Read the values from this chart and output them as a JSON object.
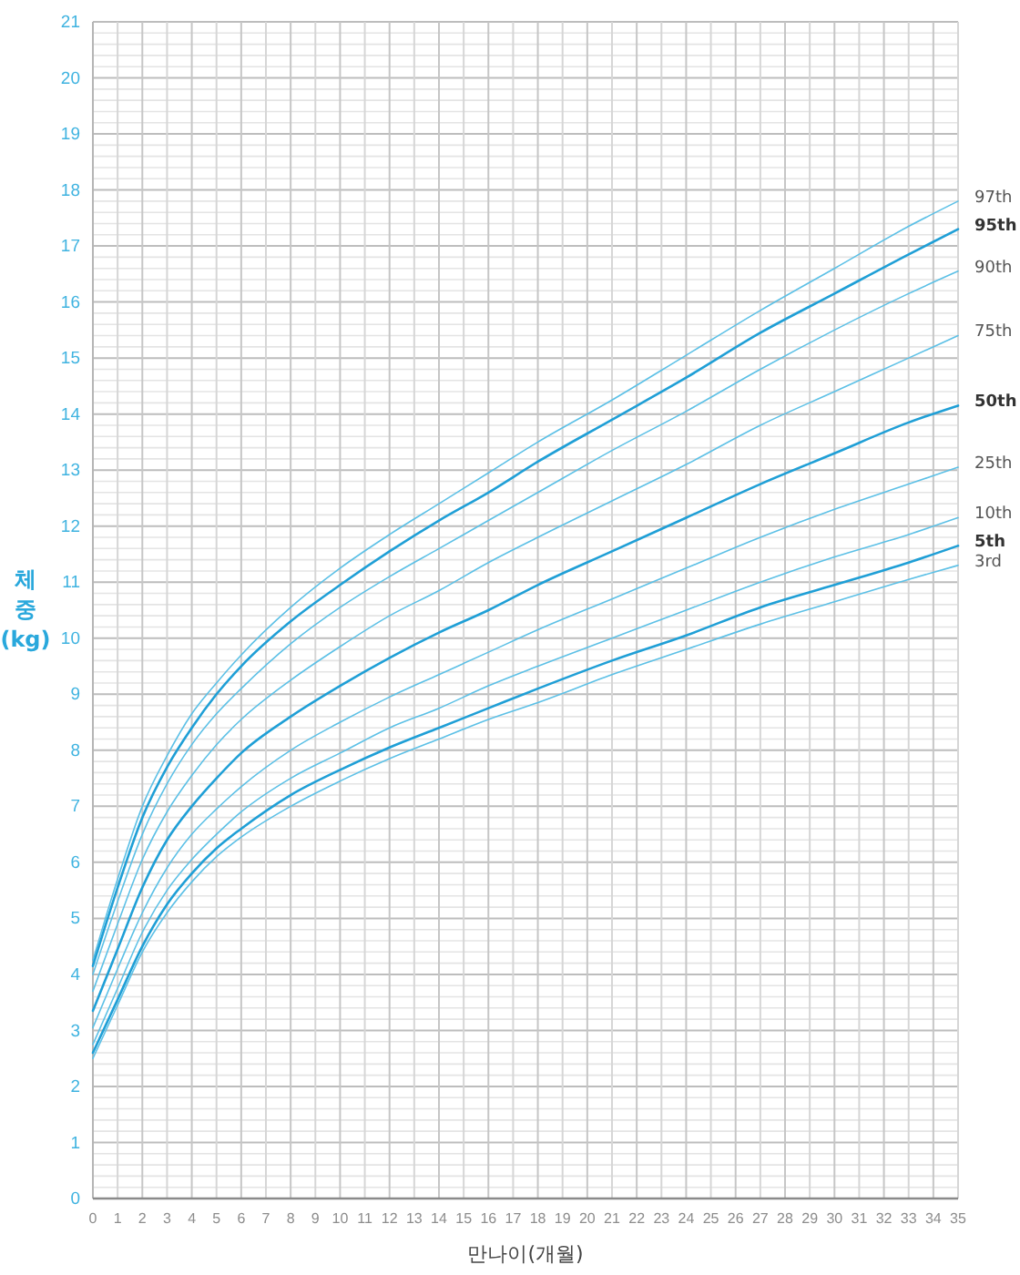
{
  "chart_data": {
    "type": "line",
    "xlabel": "만나이(개월)",
    "ylabel": "체중(kg)",
    "x": [
      0,
      1,
      2,
      3,
      4,
      5,
      6,
      8,
      10,
      12,
      14,
      16,
      18,
      21,
      24,
      27,
      30,
      33,
      35
    ],
    "xlim": [
      0,
      35
    ],
    "xticks": [
      0,
      1,
      2,
      3,
      4,
      5,
      6,
      7,
      8,
      9,
      10,
      11,
      12,
      13,
      14,
      15,
      16,
      17,
      18,
      19,
      20,
      21,
      22,
      23,
      24,
      25,
      26,
      27,
      28,
      29,
      30,
      31,
      32,
      33,
      34,
      35
    ],
    "ylim": [
      0,
      21
    ],
    "yticks": [
      0,
      {
        "value": 0.2,
        "label": null
      },
      {
        "value": 0.4,
        "label": null
      },
      {
        "value": 0.6,
        "label": null
      },
      {
        "value": 0.8,
        "label": null
      },
      1,
      {
        "value": 1.2,
        "label": null
      },
      {
        "value": 1.4,
        "label": null
      },
      {
        "value": 1.6,
        "label": null
      },
      {
        "value": 1.8,
        "label": null
      },
      2,
      {
        "value": 2.2,
        "label": null
      },
      {
        "value": 2.4,
        "label": null
      },
      {
        "value": 2.6,
        "label": null
      },
      {
        "value": 2.8,
        "label": null
      },
      3,
      {
        "value": 3.2,
        "label": null
      },
      {
        "value": 3.4,
        "label": null
      },
      {
        "value": 3.6,
        "label": null
      },
      {
        "value": 3.8,
        "label": null
      },
      4,
      {
        "value": 4.2,
        "label": null
      },
      {
        "value": 4.4,
        "label": null
      },
      {
        "value": 4.6,
        "label": null
      },
      {
        "value": 4.8,
        "label": null
      },
      5,
      {
        "value": 5.2,
        "label": null
      },
      {
        "value": 5.4,
        "label": null
      },
      {
        "value": 5.6,
        "label": null
      },
      {
        "value": 5.8,
        "label": null
      },
      6,
      {
        "value": 6.2,
        "label": null
      },
      {
        "value": 6.4,
        "label": null
      },
      {
        "value": 6.6,
        "label": null
      },
      {
        "value": 6.8,
        "label": null
      },
      7,
      {
        "value": 7.2,
        "label": null
      },
      {
        "value": 7.4,
        "label": null
      },
      {
        "value": 7.6,
        "label": null
      },
      {
        "value": 7.8,
        "label": null
      },
      8,
      {
        "value": 8.2,
        "label": null
      },
      {
        "value": 8.4,
        "label": null
      },
      {
        "value": 8.6,
        "label": null
      },
      {
        "value": 8.8,
        "label": null
      },
      9,
      {
        "value": 9.2,
        "label": null
      },
      {
        "value": 9.4,
        "label": null
      },
      {
        "value": 9.6,
        "label": null
      },
      {
        "value": 9.8,
        "label": null
      },
      10,
      {
        "value": 10.2,
        "label": null
      },
      {
        "value": 10.4,
        "label": null
      },
      {
        "value": 10.6,
        "label": null
      },
      {
        "value": 10.8,
        "label": null
      },
      11,
      {
        "value": 11.2,
        "label": null
      },
      {
        "value": 11.4,
        "label": null
      },
      {
        "value": 11.6,
        "label": null
      },
      {
        "value": 11.8,
        "label": null
      },
      12,
      {
        "value": 12.2,
        "label": null
      },
      {
        "value": 12.4,
        "label": null
      },
      {
        "value": 12.6,
        "label": null
      },
      {
        "value": 12.8,
        "label": null
      },
      13,
      {
        "value": 13.2,
        "label": null
      },
      {
        "value": 13.4,
        "label": null
      },
      {
        "value": 13.6,
        "label": null
      },
      {
        "value": 13.8,
        "label": null
      },
      14,
      {
        "value": 14.2,
        "label": null
      },
      {
        "value": 14.4,
        "label": null
      },
      {
        "value": 14.6,
        "label": null
      },
      {
        "value": 14.8,
        "label": null
      },
      15,
      {
        "value": 15.2,
        "label": null
      },
      {
        "value": 15.4,
        "label": null
      },
      {
        "value": 15.6,
        "label": null
      },
      {
        "value": 15.8,
        "label": null
      },
      16,
      {
        "value": 16.2,
        "label": null
      },
      {
        "value": 16.4,
        "label": null
      },
      {
        "value": 16.6,
        "label": null
      },
      {
        "value": 16.8,
        "label": null
      },
      17,
      {
        "value": 17.2,
        "label": null
      },
      {
        "value": 17.4,
        "label": null
      },
      {
        "value": 17.6,
        "label": null
      },
      {
        "value": 17.8,
        "label": null
      },
      18,
      {
        "value": 18.2,
        "label": null
      },
      {
        "value": 18.4,
        "label": null
      },
      {
        "value": 18.6,
        "label": null
      },
      {
        "value": 18.8,
        "label": null
      },
      19,
      {
        "value": 19.2,
        "label": null
      },
      {
        "value": 19.4,
        "label": null
      },
      {
        "value": 19.6,
        "label": null
      },
      {
        "value": 19.8,
        "label": null
      },
      20,
      {
        "value": 20.2,
        "label": null
      },
      {
        "value": 20.4,
        "label": null
      },
      {
        "value": 20.6,
        "label": null
      },
      {
        "value": 20.8,
        "label": null
      },
      21
    ],
    "grid": true,
    "series": [
      {
        "name": "97th",
        "color": "#5cc0e6",
        "values": [
          4.25,
          5.7,
          7.0,
          7.9,
          8.65,
          9.2,
          9.7,
          10.55,
          11.25,
          11.85,
          12.4,
          12.95,
          13.5,
          14.25,
          15.05,
          15.85,
          16.6,
          17.35,
          17.8
        ]
      },
      {
        "name": "95th",
        "color": "#1f9fd6",
        "values": [
          4.15,
          5.55,
          6.8,
          7.7,
          8.4,
          9.0,
          9.5,
          10.3,
          10.95,
          11.55,
          12.1,
          12.6,
          13.15,
          13.9,
          14.65,
          15.45,
          16.15,
          16.85,
          17.3
        ]
      },
      {
        "name": "90th",
        "color": "#5cc0e6",
        "values": [
          4.0,
          5.3,
          6.5,
          7.4,
          8.1,
          8.65,
          9.1,
          9.9,
          10.55,
          11.1,
          11.6,
          12.1,
          12.6,
          13.35,
          14.05,
          14.8,
          15.5,
          16.15,
          16.55
        ]
      },
      {
        "name": "75th",
        "color": "#5cc0e6",
        "values": [
          3.7,
          4.9,
          6.05,
          6.9,
          7.55,
          8.1,
          8.55,
          9.25,
          9.85,
          10.4,
          10.85,
          11.35,
          11.8,
          12.45,
          13.1,
          13.8,
          14.4,
          15.0,
          15.4
        ]
      },
      {
        "name": "50th",
        "color": "#1f9fd6",
        "values": [
          3.35,
          4.45,
          5.55,
          6.4,
          7.0,
          7.5,
          7.95,
          8.6,
          9.15,
          9.65,
          10.1,
          10.5,
          10.95,
          11.55,
          12.15,
          12.75,
          13.3,
          13.85,
          14.15
        ]
      },
      {
        "name": "25th",
        "color": "#5cc0e6",
        "values": [
          3.05,
          4.1,
          5.1,
          5.9,
          6.5,
          6.95,
          7.35,
          8.0,
          8.5,
          8.95,
          9.35,
          9.75,
          10.15,
          10.7,
          11.25,
          11.8,
          12.3,
          12.75,
          13.05
        ]
      },
      {
        "name": "10th",
        "color": "#5cc0e6",
        "values": [
          2.75,
          3.75,
          4.75,
          5.5,
          6.05,
          6.5,
          6.9,
          7.5,
          7.95,
          8.4,
          8.75,
          9.15,
          9.5,
          10.0,
          10.5,
          11.0,
          11.45,
          11.85,
          12.15
        ]
      },
      {
        "name": "5th",
        "color": "#1f9fd6",
        "values": [
          2.6,
          3.55,
          4.5,
          5.25,
          5.8,
          6.25,
          6.6,
          7.2,
          7.65,
          8.05,
          8.4,
          8.75,
          9.1,
          9.6,
          10.05,
          10.55,
          10.95,
          11.35,
          11.65
        ]
      },
      {
        "name": "3rd",
        "color": "#5cc0e6",
        "values": [
          2.5,
          3.45,
          4.4,
          5.1,
          5.65,
          6.1,
          6.45,
          7.0,
          7.45,
          7.85,
          8.2,
          8.55,
          8.85,
          9.35,
          9.8,
          10.25,
          10.65,
          11.05,
          11.3
        ]
      }
    ]
  }
}
